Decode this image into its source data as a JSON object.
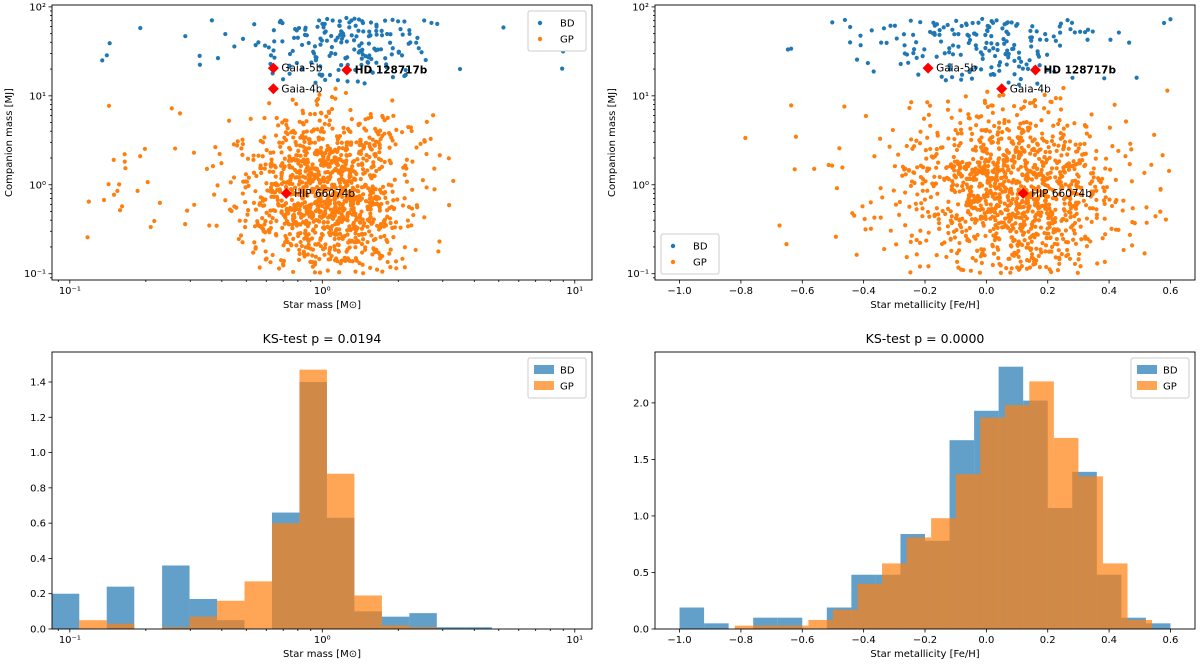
{
  "colors": {
    "BD": "#1f77b4",
    "GP": "#ff7f0e",
    "highlight": "#ff0000"
  },
  "chart_data": [
    {
      "type": "scatter",
      "title": "",
      "xlabel": "Star mass [M⊙]",
      "ylabel": "Companion mass [MJ]",
      "xscale": "log",
      "yscale": "log",
      "xlim": [
        0.085,
        11.7
      ],
      "ylim": [
        0.085,
        105
      ],
      "xticks": [
        {
          "v": 0.1,
          "label": "10⁻¹"
        },
        {
          "v": 1,
          "label": "10⁰"
        },
        {
          "v": 10,
          "label": "10¹"
        }
      ],
      "yticks": [
        {
          "v": 0.1,
          "label": "10⁻¹"
        },
        {
          "v": 1,
          "label": "10⁰"
        },
        {
          "v": 10,
          "label": "10¹"
        },
        {
          "v": 100,
          "label": "10²"
        }
      ],
      "legend": {
        "position": "top-right",
        "entries": [
          "BD",
          "GP"
        ]
      },
      "series": [
        {
          "name": "BD",
          "distribution": "approx",
          "n": 190,
          "x_center": 1.2,
          "y_range": [
            13,
            75
          ]
        },
        {
          "name": "GP",
          "distribution": "approx",
          "n": 1200,
          "x_center": 1.05,
          "y_range": [
            0.1,
            13
          ]
        }
      ],
      "highlighted": [
        {
          "label": "Gaia-5b",
          "x": 0.64,
          "y": 20.5,
          "bold": false
        },
        {
          "label": "HD 128717b",
          "x": 1.25,
          "y": 19.5,
          "bold": true
        },
        {
          "label": "Gaia-4b",
          "x": 0.64,
          "y": 12,
          "bold": false
        },
        {
          "label": "HIP 66074b",
          "x": 0.72,
          "y": 0.8,
          "bold": false
        }
      ]
    },
    {
      "type": "scatter",
      "title": "",
      "xlabel": "Star metallicity [Fe/H]",
      "ylabel": "Companion mass [MJ]",
      "xscale": "linear",
      "yscale": "log",
      "xlim": [
        -1.08,
        0.68
      ],
      "ylim": [
        0.085,
        105
      ],
      "xticks": [
        {
          "v": -1.0,
          "label": "−1.0"
        },
        {
          "v": -0.8,
          "label": "−0.8"
        },
        {
          "v": -0.6,
          "label": "−0.6"
        },
        {
          "v": -0.4,
          "label": "−0.4"
        },
        {
          "v": -0.2,
          "label": "−0.2"
        },
        {
          "v": 0.0,
          "label": "0.0"
        },
        {
          "v": 0.2,
          "label": "0.2"
        },
        {
          "v": 0.4,
          "label": "0.4"
        },
        {
          "v": 0.6,
          "label": "0.6"
        }
      ],
      "yticks": [
        {
          "v": 0.1,
          "label": "10⁻¹"
        },
        {
          "v": 1,
          "label": "10⁰"
        },
        {
          "v": 10,
          "label": "10¹"
        },
        {
          "v": 100,
          "label": "10²"
        }
      ],
      "legend": {
        "position": "bottom-left",
        "entries": [
          "BD",
          "GP"
        ]
      },
      "series": [
        {
          "name": "BD",
          "distribution": "approx",
          "n": 190,
          "x_center": 0.0,
          "y_range": [
            13,
            75
          ]
        },
        {
          "name": "GP",
          "distribution": "approx",
          "n": 1200,
          "x_center": 0.08,
          "y_range": [
            0.1,
            13
          ]
        }
      ],
      "highlighted": [
        {
          "label": "Gaia-5b",
          "x": -0.19,
          "y": 20.5,
          "bold": false
        },
        {
          "label": "HD 128717b",
          "x": 0.16,
          "y": 19.5,
          "bold": true
        },
        {
          "label": "Gaia-4b",
          "x": 0.05,
          "y": 12,
          "bold": false
        },
        {
          "label": "HIP 66074b",
          "x": 0.12,
          "y": 0.8,
          "bold": false
        }
      ]
    },
    {
      "type": "bar",
      "title": "KS-test p = 0.0194",
      "xlabel": "Star mass [M⊙]",
      "ylabel": "",
      "xscale": "log",
      "xlim": [
        0.085,
        11.7
      ],
      "ylim": [
        0,
        1.57
      ],
      "xticks": [
        {
          "v": 0.1,
          "label": "10⁻¹"
        },
        {
          "v": 1,
          "label": "10⁰"
        },
        {
          "v": 10,
          "label": "10¹"
        }
      ],
      "yticks": [
        {
          "v": 0.0,
          "label": "0.0"
        },
        {
          "v": 0.2,
          "label": "0.2"
        },
        {
          "v": 0.4,
          "label": "0.4"
        },
        {
          "v": 0.6,
          "label": "0.6"
        },
        {
          "v": 0.8,
          "label": "0.8"
        },
        {
          "v": 1.0,
          "label": "1.0"
        },
        {
          "v": 1.2,
          "label": "1.2"
        },
        {
          "v": 1.4,
          "label": "1.4"
        }
      ],
      "legend": {
        "position": "top-right",
        "entries": [
          "BD",
          "GP"
        ]
      },
      "bin_edges": [
        0.085,
        0.109,
        0.14,
        0.18,
        0.232,
        0.298,
        0.383,
        0.492,
        0.632,
        0.812,
        1.043,
        1.34,
        1.722,
        2.212,
        2.842,
        3.651,
        4.691,
        6.027
      ],
      "series": [
        {
          "name": "BD",
          "values": [
            0.2,
            0,
            0.24,
            0,
            0.36,
            0.17,
            0.05,
            0,
            0.66,
            1.4,
            0.63,
            0.1,
            0.07,
            0.09,
            0.01,
            0.01,
            0
          ]
        },
        {
          "name": "GP",
          "values": [
            0,
            0.05,
            0.03,
            0,
            0.01,
            0.07,
            0.16,
            0.27,
            0.6,
            1.47,
            0.88,
            0.19,
            0.02,
            0.01,
            0,
            0,
            0
          ]
        }
      ]
    },
    {
      "type": "bar",
      "title": "KS-test p = 0.0000",
      "xlabel": "Star metallicity [Fe/H]",
      "ylabel": "",
      "xscale": "linear",
      "xlim": [
        -1.08,
        0.68
      ],
      "ylim": [
        0,
        2.45
      ],
      "xticks": [
        {
          "v": -1.0,
          "label": "−1.0"
        },
        {
          "v": -0.8,
          "label": "−0.8"
        },
        {
          "v": -0.6,
          "label": "−0.6"
        },
        {
          "v": -0.4,
          "label": "−0.4"
        },
        {
          "v": -0.2,
          "label": "−0.2"
        },
        {
          "v": 0.0,
          "label": "0.0"
        },
        {
          "v": 0.2,
          "label": "0.2"
        },
        {
          "v": 0.4,
          "label": "0.4"
        },
        {
          "v": 0.6,
          "label": "0.6"
        }
      ],
      "yticks": [
        {
          "v": 0.0,
          "label": "0.0"
        },
        {
          "v": 0.5,
          "label": "0.5"
        },
        {
          "v": 1.0,
          "label": "1.0"
        },
        {
          "v": 1.5,
          "label": "1.5"
        },
        {
          "v": 2.0,
          "label": "2.0"
        }
      ],
      "legend": {
        "position": "top-right",
        "entries": [
          "BD",
          "GP"
        ]
      },
      "series": [
        {
          "name": "BD",
          "bin_edges": [
            -1.0,
            -0.92,
            -0.84,
            -0.76,
            -0.68,
            -0.6,
            -0.52,
            -0.44,
            -0.36,
            -0.28,
            -0.2,
            -0.12,
            -0.04,
            0.04,
            0.12,
            0.2,
            0.28,
            0.36,
            0.44,
            0.52,
            0.6
          ],
          "values": [
            0.19,
            0.05,
            0,
            0.1,
            0.1,
            0,
            0.19,
            0.48,
            0.48,
            0.84,
            0.78,
            1.67,
            1.93,
            2.32,
            2.02,
            1.07,
            1.39,
            0.48,
            0.1,
            0.05
          ]
        },
        {
          "name": "GP",
          "bin_edges": [
            -0.9,
            -0.82,
            -0.74,
            -0.66,
            -0.58,
            -0.5,
            -0.42,
            -0.34,
            -0.26,
            -0.18,
            -0.1,
            -0.02,
            0.06,
            0.14,
            0.22,
            0.3,
            0.38,
            0.46,
            0.54
          ],
          "values": [
            0,
            0.03,
            0.03,
            0.03,
            0.08,
            0.17,
            0.4,
            0.58,
            0.81,
            0.98,
            1.37,
            1.87,
            1.98,
            2.19,
            1.69,
            1.35,
            0.58,
            0.08
          ]
        }
      ]
    }
  ]
}
